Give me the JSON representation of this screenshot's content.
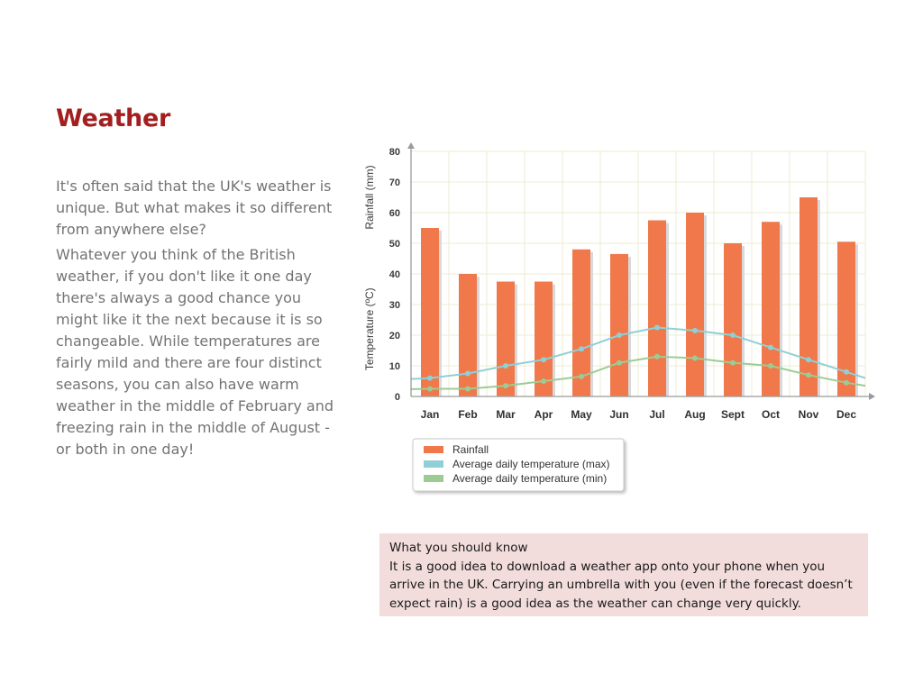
{
  "page": {
    "title": "Weather",
    "paragraphs": [
      "It's often said that the UK's weather is unique. But what makes it so different from anywhere else?",
      "Whatever you think of the British weather, if you don't like it one day there's always a good chance you might like it the next because it is so changeable. While temperatures are fairly mild and there are four distinct seasons, you can also have warm weather in the middle of February and freezing rain in the middle of August - or both in one day!"
    ]
  },
  "info_box": {
    "heading": "What you should know",
    "text": "It is a good idea to download a weather app onto your phone when you arrive in the UK.  Carrying an umbrella with you (even if the forecast doesn’t expect rain) is a good idea as the weather can change very quickly."
  },
  "chart_data": {
    "type": "bar",
    "categories": [
      "Jan",
      "Feb",
      "Mar",
      "Apr",
      "May",
      "Jun",
      "Jul",
      "Aug",
      "Sept",
      "Oct",
      "Nov",
      "Dec"
    ],
    "series": [
      {
        "name": "Rainfall",
        "type": "bar",
        "color": "#f0784a",
        "values": [
          55,
          40,
          37.5,
          37.5,
          48,
          46.5,
          57.5,
          60,
          50,
          57,
          65,
          50.5
        ]
      },
      {
        "name": "Average daily temperature (max)",
        "type": "line",
        "color": "#8fd0d6",
        "values": [
          6,
          7.5,
          10,
          12,
          15.5,
          20,
          22.5,
          21.5,
          20,
          16,
          12,
          8
        ]
      },
      {
        "name": "Average daily temperature (min)",
        "type": "line",
        "color": "#9ccc94",
        "values": [
          2.5,
          2.5,
          3.5,
          5,
          6.5,
          11,
          13,
          12.5,
          11,
          10,
          7,
          4.5
        ]
      }
    ],
    "ylabel_rainfall": "Rainfall (mm)",
    "ylabel_temperature": "Temperature (ºC)",
    "yticks": [
      0,
      10,
      20,
      30,
      40,
      50,
      60,
      70,
      80
    ],
    "ylim": [
      0,
      80
    ],
    "grid": true,
    "legend": "bottom-left"
  }
}
